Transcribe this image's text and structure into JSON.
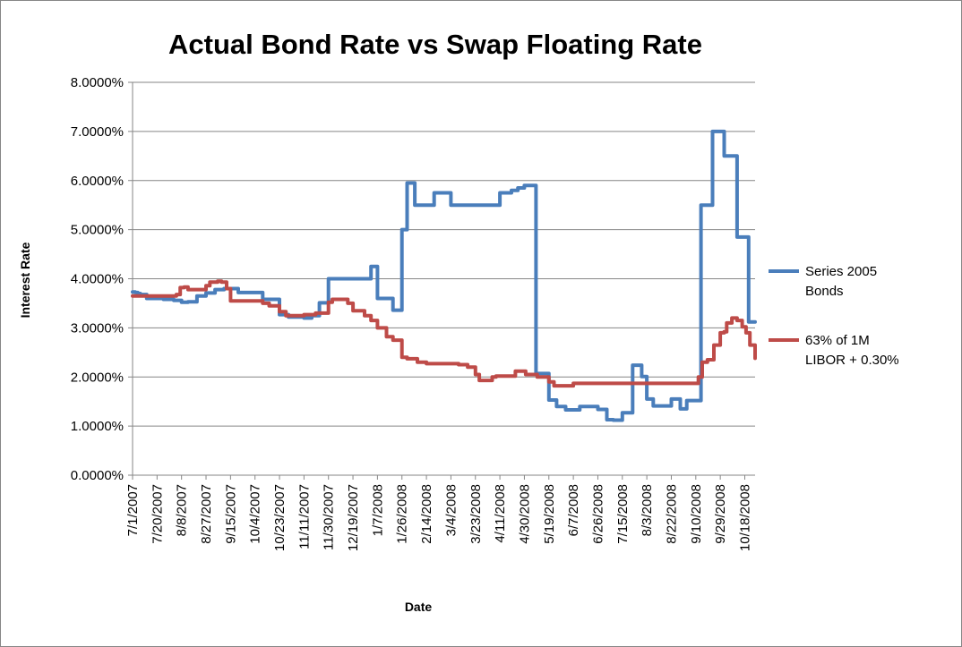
{
  "chart_data": {
    "type": "line",
    "title": "Actual Bond Rate vs Swap Floating Rate",
    "xlabel": "Date",
    "ylabel": "Interest Rate",
    "ylim": [
      0,
      0.08
    ],
    "y_ticks": [
      "0.0000%",
      "1.0000%",
      "2.0000%",
      "3.0000%",
      "4.0000%",
      "5.0000%",
      "6.0000%",
      "7.0000%",
      "8.0000%"
    ],
    "y_tick_values": [
      0,
      0.01,
      0.02,
      0.03,
      0.04,
      0.05,
      0.06,
      0.07,
      0.08
    ],
    "x_start": "2007-07-01",
    "x_end": "2008-10-26",
    "x_ticks": [
      "7/1/2007",
      "7/20/2007",
      "8/8/2007",
      "8/27/2007",
      "9/15/2007",
      "10/4/2007",
      "10/23/2007",
      "11/11/2007",
      "11/30/2007",
      "12/19/2007",
      "1/7/2008",
      "1/26/2008",
      "2/14/2008",
      "3/4/2008",
      "3/23/2008",
      "4/11/2008",
      "4/30/2008",
      "5/19/2008",
      "6/7/2008",
      "6/26/2008",
      "7/15/2008",
      "8/3/2008",
      "8/22/2008",
      "9/10/2008",
      "9/29/2008",
      "10/18/2008"
    ],
    "grid": true,
    "legend_position": "right",
    "series": [
      {
        "name": "Series 2005 Bonds",
        "color": "#4a7ebb",
        "x": [
          "2007-07-01",
          "2007-07-03",
          "2007-07-05",
          "2007-07-07",
          "2007-07-12",
          "2007-07-25",
          "2007-08-02",
          "2007-08-08",
          "2007-08-13",
          "2007-08-20",
          "2007-08-27",
          "2007-09-03",
          "2007-09-10",
          "2007-09-15",
          "2007-09-21",
          "2007-10-04",
          "2007-10-10",
          "2007-10-23",
          "2007-10-30",
          "2007-11-11",
          "2007-11-17",
          "2007-11-23",
          "2007-11-30",
          "2007-12-07",
          "2007-12-19",
          "2007-12-26",
          "2008-01-02",
          "2008-01-07",
          "2008-01-14",
          "2008-01-19",
          "2008-01-20",
          "2008-01-26",
          "2008-01-30",
          "2008-02-05",
          "2008-02-10",
          "2008-02-14",
          "2008-02-20",
          "2008-02-28",
          "2008-03-04",
          "2008-03-11",
          "2008-03-23",
          "2008-03-30",
          "2008-04-06",
          "2008-04-11",
          "2008-04-15",
          "2008-04-20",
          "2008-04-25",
          "2008-04-30",
          "2008-05-07",
          "2008-05-09",
          "2008-05-13",
          "2008-05-19",
          "2008-05-25",
          "2008-06-01",
          "2008-06-07",
          "2008-06-12",
          "2008-06-19",
          "2008-06-26",
          "2008-07-03",
          "2008-07-08",
          "2008-07-13",
          "2008-07-15",
          "2008-07-17",
          "2008-07-23",
          "2008-07-27",
          "2008-07-30",
          "2008-08-03",
          "2008-08-08",
          "2008-08-13",
          "2008-08-22",
          "2008-08-29",
          "2008-09-03",
          "2008-09-10",
          "2008-09-14",
          "2008-09-18",
          "2008-09-23",
          "2008-09-26",
          "2008-10-02",
          "2008-10-07",
          "2008-10-12",
          "2008-10-19",
          "2008-10-21",
          "2008-10-26"
        ],
        "values": [
          0.0373,
          0.0372,
          0.037,
          0.0368,
          0.036,
          0.0358,
          0.0356,
          0.0352,
          0.0353,
          0.0365,
          0.0371,
          0.0378,
          0.038,
          0.038,
          0.0372,
          0.0372,
          0.0358,
          0.0327,
          0.0322,
          0.032,
          0.0325,
          0.0351,
          0.04,
          0.04,
          0.04,
          0.04,
          0.0425,
          0.036,
          0.036,
          0.0336,
          0.0336,
          0.05,
          0.0595,
          0.055,
          0.055,
          0.055,
          0.0575,
          0.0575,
          0.055,
          0.055,
          0.055,
          0.055,
          0.055,
          0.0575,
          0.0575,
          0.058,
          0.0585,
          0.059,
          0.059,
          0.0207,
          0.0207,
          0.0153,
          0.014,
          0.0133,
          0.0133,
          0.014,
          0.014,
          0.0134,
          0.0113,
          0.0112,
          0.0112,
          0.0127,
          0.0127,
          0.0224,
          0.0224,
          0.0201,
          0.0155,
          0.0141,
          0.0141,
          0.0155,
          0.0135,
          0.0152,
          0.0152,
          0.055,
          0.055,
          0.07,
          0.07,
          0.065,
          0.065,
          0.0485,
          0.0485,
          0.0312,
          0.0312
        ]
      },
      {
        "name": "63% of 1M LIBOR + 0.30%",
        "color": "#be4b48",
        "x": [
          "2007-07-01",
          "2007-07-20",
          "2007-08-01",
          "2007-08-04",
          "2007-08-07",
          "2007-08-10",
          "2007-08-13",
          "2007-08-25",
          "2007-08-27",
          "2007-08-30",
          "2007-09-05",
          "2007-09-08",
          "2007-09-12",
          "2007-09-15",
          "2007-09-19",
          "2007-10-04",
          "2007-10-10",
          "2007-10-15",
          "2007-10-23",
          "2007-10-28",
          "2007-11-04",
          "2007-11-11",
          "2007-11-20",
          "2007-11-30",
          "2007-12-03",
          "2007-12-10",
          "2007-12-15",
          "2007-12-19",
          "2007-12-28",
          "2008-01-02",
          "2008-01-07",
          "2008-01-14",
          "2008-01-19",
          "2008-01-26",
          "2008-01-30",
          "2008-02-07",
          "2008-02-14",
          "2008-03-04",
          "2008-03-10",
          "2008-03-17",
          "2008-03-23",
          "2008-03-26",
          "2008-04-05",
          "2008-04-08",
          "2008-04-20",
          "2008-04-23",
          "2008-05-01",
          "2008-05-10",
          "2008-05-19",
          "2008-05-23",
          "2008-06-07",
          "2008-06-15",
          "2008-07-01",
          "2008-07-15",
          "2008-07-20",
          "2008-08-03",
          "2008-08-22",
          "2008-09-10",
          "2008-09-12",
          "2008-09-15",
          "2008-09-19",
          "2008-09-24",
          "2008-09-29",
          "2008-10-02",
          "2008-10-04",
          "2008-10-08",
          "2008-10-12",
          "2008-10-16",
          "2008-10-19",
          "2008-10-22",
          "2008-10-26"
        ],
        "values": [
          0.0365,
          0.0365,
          0.0365,
          0.0368,
          0.0382,
          0.0383,
          0.0378,
          0.0378,
          0.0386,
          0.0393,
          0.0395,
          0.0393,
          0.038,
          0.0355,
          0.0355,
          0.0355,
          0.035,
          0.0345,
          0.0333,
          0.0325,
          0.0325,
          0.0327,
          0.033,
          0.0352,
          0.0358,
          0.0358,
          0.035,
          0.0335,
          0.0325,
          0.0315,
          0.03,
          0.0282,
          0.0275,
          0.024,
          0.0237,
          0.023,
          0.0227,
          0.0227,
          0.0225,
          0.022,
          0.0205,
          0.0193,
          0.02,
          0.0202,
          0.0202,
          0.0212,
          0.0205,
          0.02,
          0.019,
          0.0182,
          0.0187,
          0.0187,
          0.0187,
          0.0187,
          0.0187,
          0.0187,
          0.0187,
          0.0187,
          0.02,
          0.023,
          0.0235,
          0.0265,
          0.029,
          0.0292,
          0.031,
          0.032,
          0.0315,
          0.0302,
          0.029,
          0.0265,
          0.0238
        ]
      }
    ]
  }
}
